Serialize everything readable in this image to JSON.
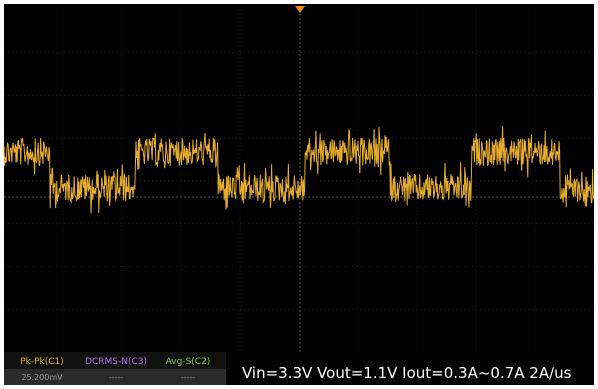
{
  "measurements": [
    {
      "label": "Pk-Pk(C1)",
      "value": "25.200mV"
    },
    {
      "label": "DCRMS-N(C3)",
      "value": "-----"
    },
    {
      "label": "Avg-S(C2)",
      "value": "-----"
    }
  ],
  "caption": "Vin=3.3V Vout=1.1V Iout=0.3A~0.7A 2A/us"
}
